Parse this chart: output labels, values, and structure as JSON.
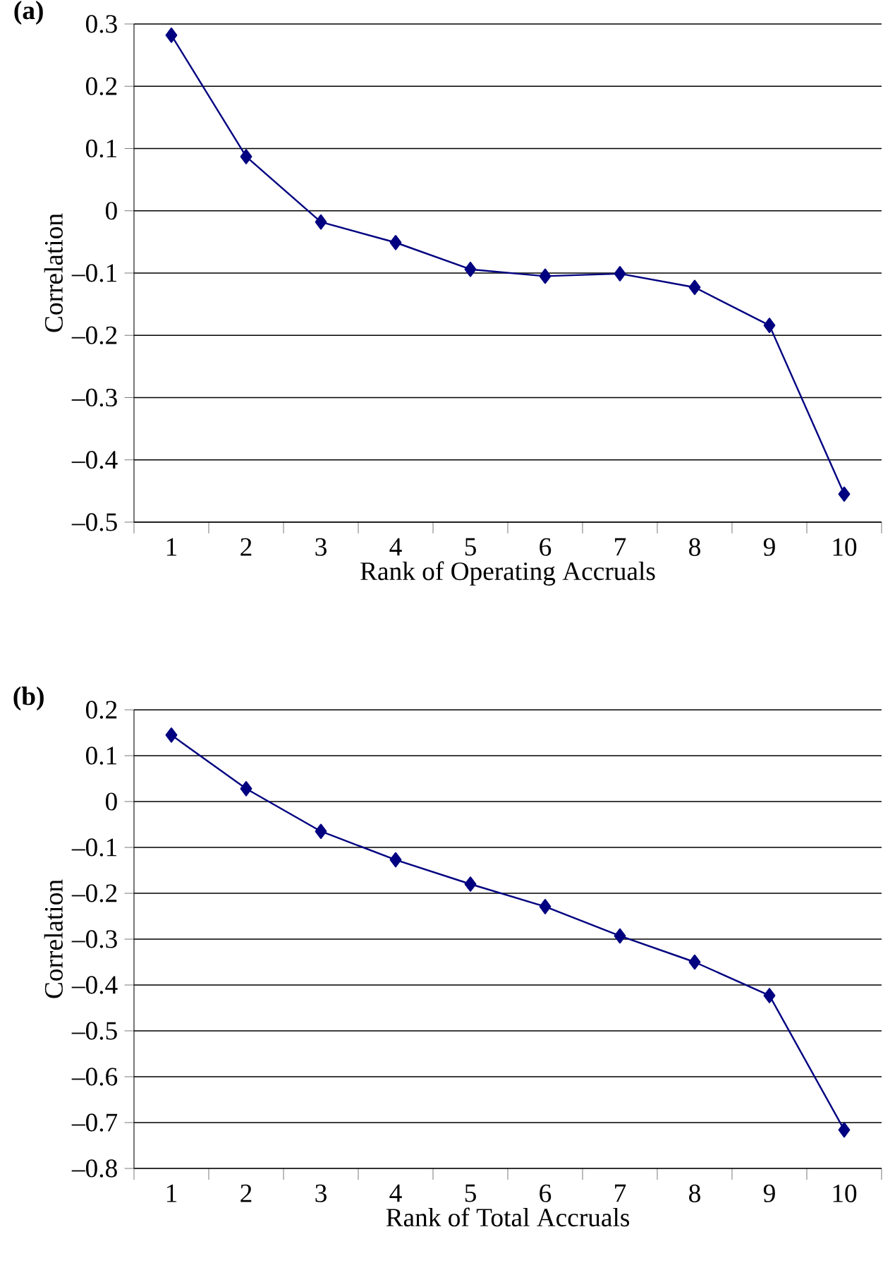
{
  "chart_data": [
    {
      "type": "line",
      "title": "(a)",
      "xlabel": "Rank of Operating Accruals",
      "ylabel": "Correlation",
      "categories": [
        "1",
        "2",
        "3",
        "4",
        "5",
        "6",
        "7",
        "8",
        "9",
        "10"
      ],
      "series": [
        {
          "color": "#000080",
          "values": [
            0.282,
            0.087,
            -0.018,
            -0.051,
            -0.094,
            -0.105,
            -0.101,
            -0.123,
            -0.184,
            -0.455
          ]
        }
      ],
      "ylim": [
        -0.5,
        0.3
      ],
      "yticks": [
        {
          "value": -0.5,
          "label": "–0.5"
        },
        {
          "value": -0.4,
          "label": "–0.4"
        },
        {
          "value": -0.3,
          "label": "–0.3"
        },
        {
          "value": -0.2,
          "label": "–0.2"
        },
        {
          "value": -0.1,
          "label": "–0.1"
        },
        0,
        0.1,
        0.2,
        0.3
      ],
      "grid": "y",
      "marker": "diamond",
      "line_style": "solid"
    },
    {
      "type": "line",
      "title": "(b)",
      "xlabel": "Rank of Total Accruals",
      "ylabel": "Correlation",
      "categories": [
        "1",
        "2",
        "3",
        "4",
        "5",
        "6",
        "7",
        "8",
        "9",
        "10"
      ],
      "series": [
        {
          "color": "#000080",
          "values": [
            0.145,
            0.028,
            -0.065,
            -0.127,
            -0.18,
            -0.229,
            -0.293,
            -0.35,
            -0.423,
            -0.716
          ]
        }
      ],
      "ylim": [
        -0.8,
        0.2
      ],
      "yticks": [
        {
          "value": -0.8,
          "label": "–0.8"
        },
        {
          "value": -0.7,
          "label": "–0.7"
        },
        {
          "value": -0.6,
          "label": "–0.6"
        },
        {
          "value": -0.5,
          "label": "–0.5"
        },
        {
          "value": -0.4,
          "label": "–0.4"
        },
        {
          "value": -0.3,
          "label": "–0.3"
        },
        {
          "value": -0.2,
          "label": "–0.2"
        },
        {
          "value": -0.1,
          "label": "–0.1"
        },
        0,
        0.1,
        0.2
      ],
      "grid": "y",
      "marker": "diamond",
      "line_style": "solid"
    }
  ]
}
